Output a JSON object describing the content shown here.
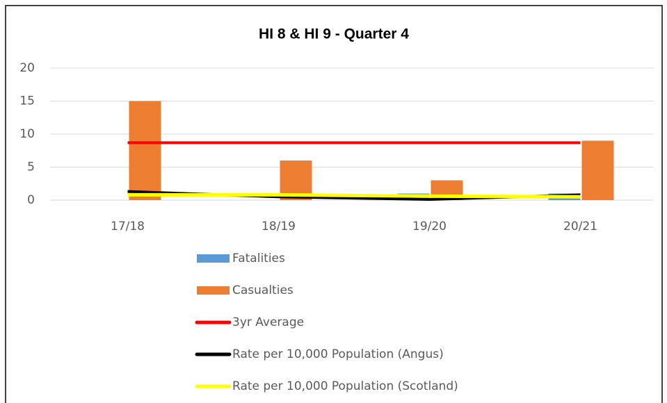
{
  "chart_data": {
    "type": "bar",
    "title": "HI 8 & HI 9 - Quarter 4",
    "categories": [
      "17/18",
      "18/19",
      "19/20",
      "20/21"
    ],
    "series": [
      {
        "name": "Fatalities",
        "type": "bar",
        "color": "#5b9bd5",
        "values": [
          0,
          0,
          1,
          1
        ]
      },
      {
        "name": "Casualties",
        "type": "bar",
        "color": "#ed7d31",
        "values": [
          15,
          6,
          3,
          9
        ]
      },
      {
        "name": "3yr Average",
        "type": "line",
        "color": "#ff0000",
        "values": [
          8.7,
          8.7,
          8.7,
          8.7
        ]
      },
      {
        "name": "Rate per 10,000 Population (Angus)",
        "type": "line",
        "color": "#000000",
        "values": [
          1.3,
          0.5,
          0.1,
          0.8
        ]
      },
      {
        "name": "Rate per 10,000 Population (Scotland)",
        "type": "line",
        "color": "#ffff00",
        "values": [
          0.8,
          0.8,
          0.6,
          0.5
        ]
      }
    ],
    "ylim": [
      0,
      20
    ],
    "yticks": [
      0,
      5,
      10,
      15,
      20
    ],
    "grid": true,
    "legend": "bottom"
  }
}
